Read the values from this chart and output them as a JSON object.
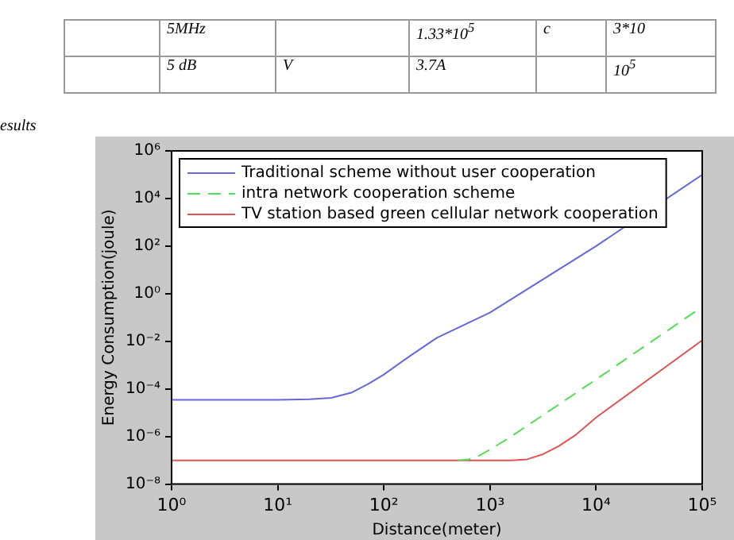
{
  "chart_data": {
    "type": "line",
    "xlabel": "Distance(meter)",
    "ylabel": "Energy Consumption(joule)",
    "annotations": [
      "5MHz",
      "1.33*10$^{5}$",
      "c",
      "3*10",
      "5 dB",
      "V",
      "3.7A",
      "10$^{5}$",
      "esults"
    ],
    "log": "xy",
    "legend": "top left",
    "grid": false,
    "marker": "none",
    "xlim": [
      1,
      100000
    ],
    "ylim": [
      1e-08,
      1000000
    ],
    "xticks": [
      {
        "value": 1,
        "label": "10⁰"
      },
      {
        "value": 10,
        "label": "10¹"
      },
      {
        "value": 100,
        "label": "10²"
      },
      {
        "value": 1000,
        "label": "10³"
      },
      {
        "value": 10000,
        "label": "10⁴"
      },
      {
        "value": 100000,
        "label": "10⁵"
      }
    ],
    "yticks": [
      {
        "value": 1e-08,
        "label": "10⁻⁸"
      },
      {
        "value": 1e-06,
        "label": "10⁻⁶"
      },
      {
        "value": 0.0001,
        "label": "10⁻⁴"
      },
      {
        "value": 0.01,
        "label": "10⁻²"
      },
      {
        "value": 1,
        "label": "10⁰"
      },
      {
        "value": 100,
        "label": "10²"
      },
      {
        "value": 10000,
        "label": "10⁴"
      },
      {
        "value": 1000000,
        "label": "10⁶"
      }
    ],
    "series": [
      {
        "name": "Traditional scheme without user cooperation",
        "color": "#6666dd",
        "line_style": "solid",
        "x": [
          1,
          10,
          20,
          32,
          50,
          71,
          100,
          178,
          316,
          1000,
          10000,
          100000
        ],
        "values": [
          3.5e-05,
          3.5e-05,
          3.7e-05,
          4.2e-05,
          7.1e-05,
          0.00016,
          0.0004,
          0.0025,
          0.014,
          0.16,
          100,
          100000
        ]
      },
      {
        "name": "intra network cooperation scheme",
        "color": "#55dd55",
        "line_style": "dashed",
        "x": [
          500,
          631,
          794,
          1000,
          1585,
          3162,
          10000,
          100000
        ],
        "values": [
          1e-07,
          1.1e-07,
          1.6e-07,
          2.8e-07,
          1e-06,
          7.9e-06,
          0.00025,
          0.28
        ]
      },
      {
        "name": "TV station based green cellular network cooperation",
        "color": "#dd5555",
        "line_style": "solid",
        "x": [
          1,
          1585,
          2239,
          3162,
          4467,
          6310,
          10000,
          100000
        ],
        "values": [
          1e-07,
          1e-07,
          1.1e-07,
          1.8e-07,
          4e-07,
          1.1e-06,
          6.3e-06,
          0.011
        ]
      }
    ]
  }
}
